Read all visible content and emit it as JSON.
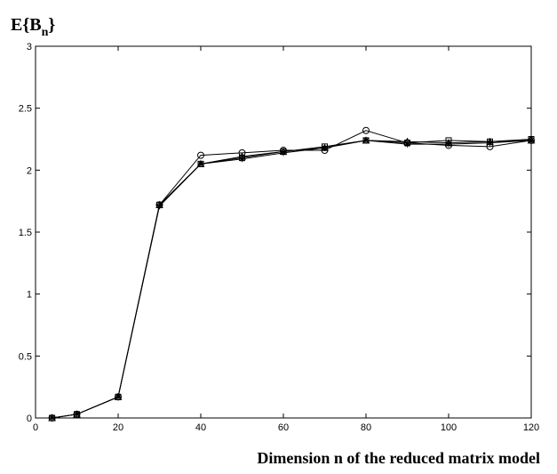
{
  "chart_data": {
    "type": "line",
    "title": "",
    "ylabel": {
      "main": "E{B",
      "subscript": "n",
      "close": "}"
    },
    "xlabel": "Dimension n of the reduced matrix model",
    "xlim": [
      0,
      120
    ],
    "ylim": [
      0,
      3
    ],
    "xticks": [
      "0",
      "20",
      "40",
      "60",
      "80",
      "100",
      "120"
    ],
    "yticks": [
      "0",
      "0.5",
      "1",
      "1.5",
      "2",
      "2.5",
      "3"
    ],
    "grid": false,
    "x": [
      4,
      10,
      20,
      30,
      40,
      50,
      60,
      70,
      80,
      90,
      100,
      110,
      120
    ],
    "series": [
      {
        "marker": "circle",
        "values": [
          0.0,
          0.03,
          0.17,
          1.72,
          2.12,
          2.14,
          2.16,
          2.16,
          2.32,
          2.22,
          2.2,
          2.19,
          2.24
        ]
      },
      {
        "marker": "square",
        "values": [
          0.0,
          0.03,
          0.17,
          1.72,
          2.05,
          2.1,
          2.15,
          2.19,
          2.24,
          2.22,
          2.24,
          2.23,
          2.25
        ]
      },
      {
        "marker": "asterisk",
        "values": [
          0.0,
          0.03,
          0.17,
          1.71,
          2.05,
          2.09,
          2.14,
          2.18,
          2.24,
          2.21,
          2.21,
          2.22,
          2.24
        ]
      },
      {
        "marker": "triangle",
        "values": [
          0.0,
          0.03,
          0.17,
          1.72,
          2.05,
          2.11,
          2.15,
          2.18,
          2.24,
          2.23,
          2.22,
          2.23,
          2.24
        ]
      }
    ]
  }
}
